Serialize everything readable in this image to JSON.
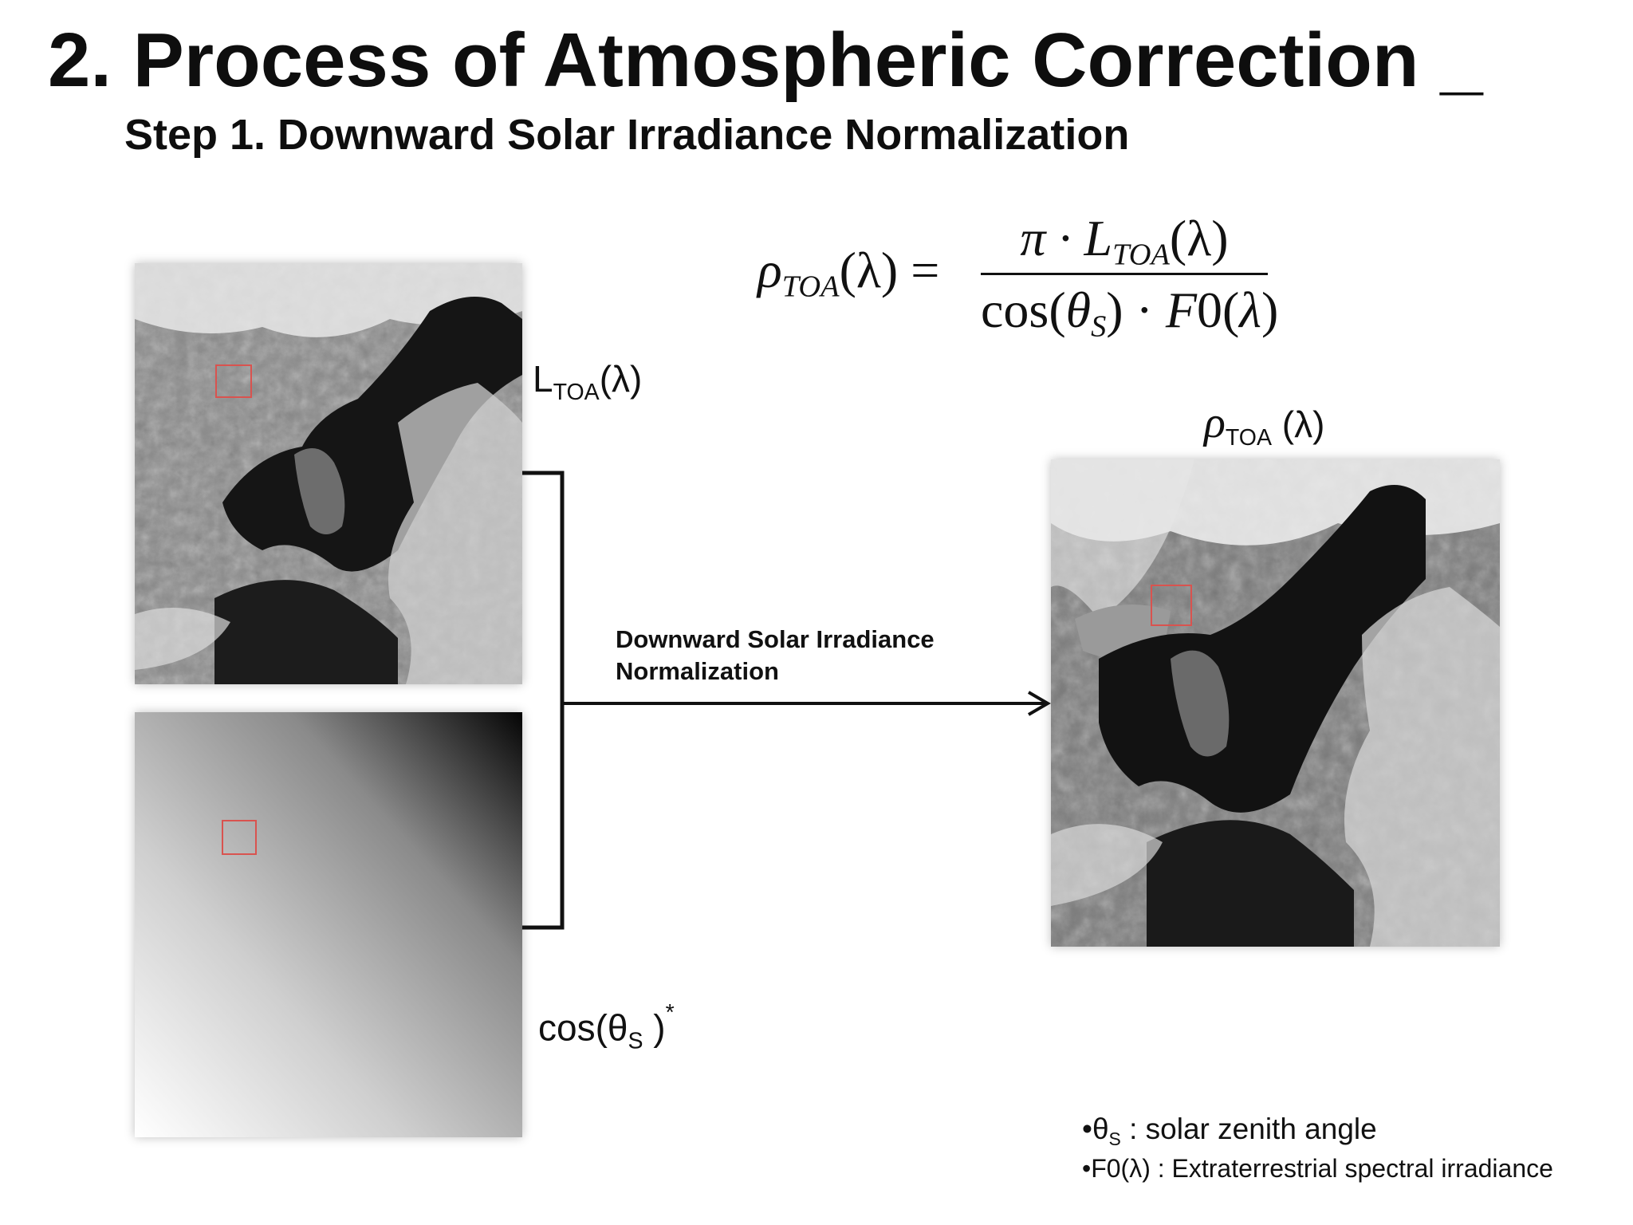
{
  "title": "2. Process of Atmospheric Correction _",
  "subtitle": "Step 1. Downward Solar Irradiance Normalization",
  "formula": {
    "lhs_symbol": "ρ",
    "lhs_sub": "TOA",
    "lhs_arg": "(λ) =",
    "num_prefix": "π · L",
    "num_sub": "TOA",
    "num_arg": "(λ)",
    "den_prefix": "cos(",
    "den_theta": "θ",
    "den_theta_sub": "S",
    "den_mid": ") · ",
    "den_f0": "F",
    "den_f0_rest": "0(",
    "den_lambda": "λ",
    "den_close": ")"
  },
  "labels": {
    "ltoa_main": "L",
    "ltoa_sub": "TOA",
    "ltoa_arg": "(λ)",
    "cos_main": "cos(θ",
    "cos_sub": "S",
    "cos_close": " )",
    "cos_sup": "*",
    "rho_main": "ρ",
    "rho_sub": "TOA",
    "rho_arg": " (λ)"
  },
  "arrow_label": {
    "line1": "Downward Solar Irradiance",
    "line2": "Normalization"
  },
  "legend": {
    "item1_bullet": "•θ",
    "item1_sub": "S",
    "item1_text": " : solar zenith angle",
    "item2_text": "•F0(λ) : Extraterrestrial spectral irradiance"
  },
  "colors": {
    "roi_box": "#d9534f",
    "text": "#111111"
  },
  "images": {
    "input_radiance": "satellite-grayscale-image",
    "cos_map": "solar-zenith-gradient-image",
    "output_reflectance": "satellite-grayscale-image-normalized"
  }
}
